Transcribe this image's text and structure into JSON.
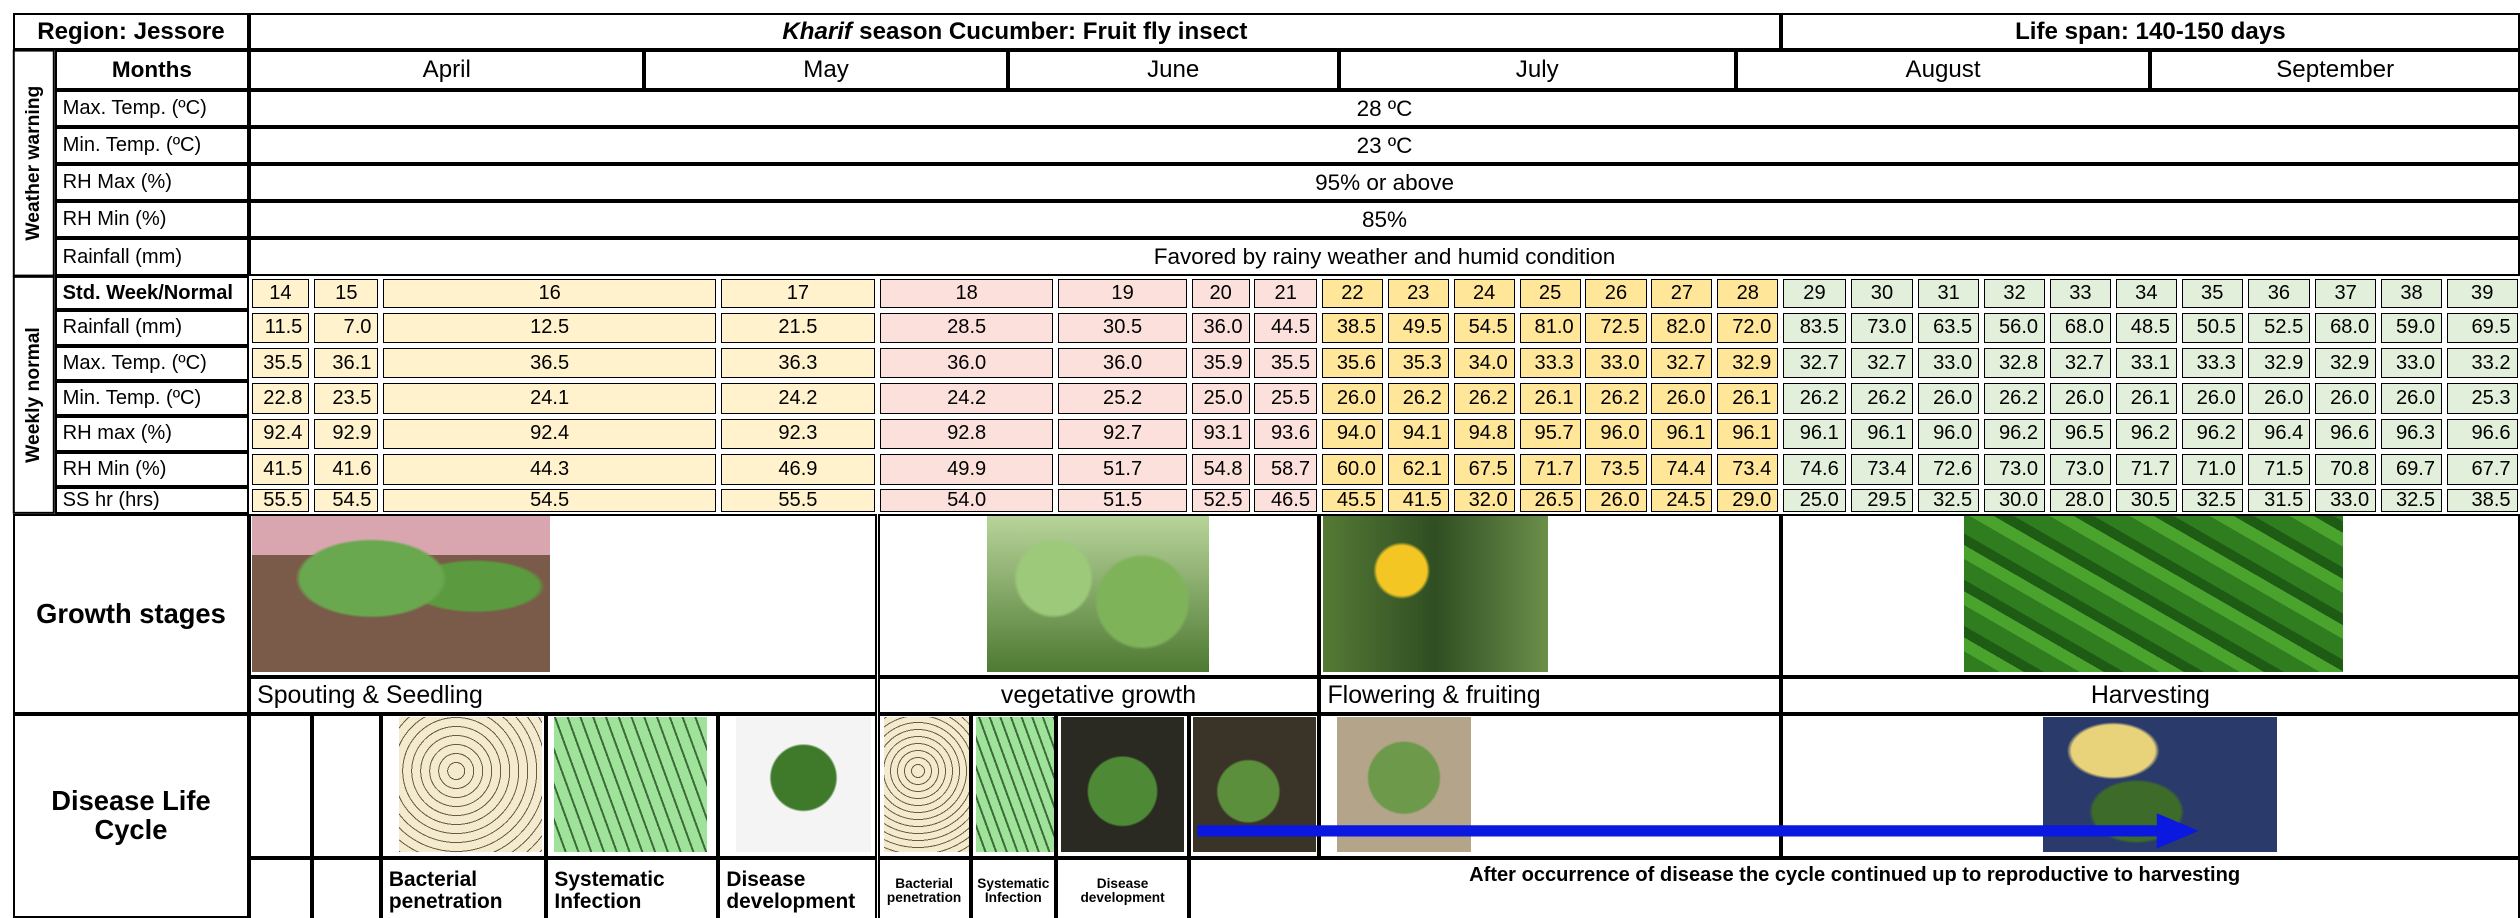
{
  "header": {
    "region": "Region:  Jessore",
    "season": "Kharif",
    "title": "season Cucumber: Fruit fly insect",
    "life_span": "Life span: 140-150 days"
  },
  "months": {
    "label": "Months",
    "names": [
      "April",
      "May",
      "June",
      "July",
      "August",
      "September"
    ]
  },
  "weather_warning": {
    "label": "Weather warning",
    "rows": [
      {
        "label": "Max. Temp. (ºC)",
        "value": "28 ºC"
      },
      {
        "label": "Min. Temp. (ºC)",
        "value": "23 ºC"
      },
      {
        "label": "RH Max (%)",
        "value": "95% or above"
      },
      {
        "label": "RH Min (%)",
        "value": "85%"
      },
      {
        "label": "Rainfall (mm)",
        "value": "Favored by rainy weather and humid condition"
      }
    ]
  },
  "weekly_normal": {
    "label": "Weekly normal",
    "header": "Std. Week/Normal",
    "weeks": [
      14,
      15,
      16,
      17,
      18,
      19,
      20,
      21,
      22,
      23,
      24,
      25,
      26,
      27,
      28,
      29,
      30,
      31,
      32,
      33,
      34,
      35,
      36,
      37,
      38,
      39
    ],
    "rows": [
      {
        "label": "Rainfall (mm)",
        "values": [
          "11.5",
          "7.0",
          "12.5",
          "21.5",
          "28.5",
          "30.5",
          "36.0",
          "44.5",
          "38.5",
          "49.5",
          "54.5",
          "81.0",
          "72.5",
          "82.0",
          "72.0",
          "83.5",
          "73.0",
          "63.5",
          "56.0",
          "68.0",
          "48.5",
          "50.5",
          "52.5",
          "68.0",
          "59.0",
          "69.5"
        ]
      },
      {
        "label": "Max. Temp. (ºC)",
        "values": [
          "35.5",
          "36.1",
          "36.5",
          "36.3",
          "36.0",
          "36.0",
          "35.9",
          "35.5",
          "35.6",
          "35.3",
          "34.0",
          "33.3",
          "33.0",
          "32.7",
          "32.9",
          "32.7",
          "32.7",
          "33.0",
          "32.8",
          "32.7",
          "33.1",
          "33.3",
          "32.9",
          "32.9",
          "33.0",
          "33.2"
        ]
      },
      {
        "label": "Min. Temp. (ºC)",
        "values": [
          "22.8",
          "23.5",
          "24.1",
          "24.2",
          "24.2",
          "25.2",
          "25.0",
          "25.5",
          "26.0",
          "26.2",
          "26.2",
          "26.1",
          "26.2",
          "26.0",
          "26.1",
          "26.2",
          "26.2",
          "26.0",
          "26.2",
          "26.0",
          "26.1",
          "26.0",
          "26.0",
          "26.0",
          "26.0",
          "25.3"
        ]
      },
      {
        "label": "RH max (%)",
        "values": [
          "92.4",
          "92.9",
          "92.4",
          "92.3",
          "92.8",
          "92.7",
          "93.1",
          "93.6",
          "94.0",
          "94.1",
          "94.8",
          "95.7",
          "96.0",
          "96.1",
          "96.1",
          "96.1",
          "96.1",
          "96.0",
          "96.2",
          "96.5",
          "96.2",
          "96.2",
          "96.4",
          "96.6",
          "96.3",
          "96.6"
        ]
      },
      {
        "label": "RH Min (%)",
        "values": [
          "41.5",
          "41.6",
          "44.3",
          "46.9",
          "49.9",
          "51.7",
          "54.8",
          "58.7",
          "60.0",
          "62.1",
          "67.5",
          "71.7",
          "73.5",
          "74.4",
          "73.4",
          "74.6",
          "73.4",
          "72.6",
          "73.0",
          "73.0",
          "71.7",
          "71.0",
          "71.5",
          "70.8",
          "69.7",
          "67.7"
        ]
      },
      {
        "label": "SS hr (hrs)",
        "values": [
          "55.5",
          "54.5",
          "54.5",
          "55.5",
          "54.0",
          "51.5",
          "52.5",
          "46.5",
          "45.5",
          "41.5",
          "32.0",
          "26.5",
          "26.0",
          "24.5",
          "29.0",
          "25.0",
          "29.5",
          "32.5",
          "30.0",
          "28.0",
          "30.5",
          "32.5",
          "31.5",
          "33.0",
          "32.5",
          "38.5"
        ]
      }
    ]
  },
  "growth_stages": {
    "label": "Growth stages",
    "stages": [
      "Spouting & Seedling",
      "vegetative growth",
      "Flowering & fruiting",
      "Harvesting"
    ]
  },
  "disease_life_cycle": {
    "label": "Disease Life Cycle",
    "steps": [
      "Bacterial penetration",
      "Systematic Infection",
      "Disease development",
      "Bacterial penetration",
      "Systematic Infection",
      "Disease development"
    ],
    "note": "After occurrence of disease the cycle continued up to reproductive to harvesting"
  }
}
